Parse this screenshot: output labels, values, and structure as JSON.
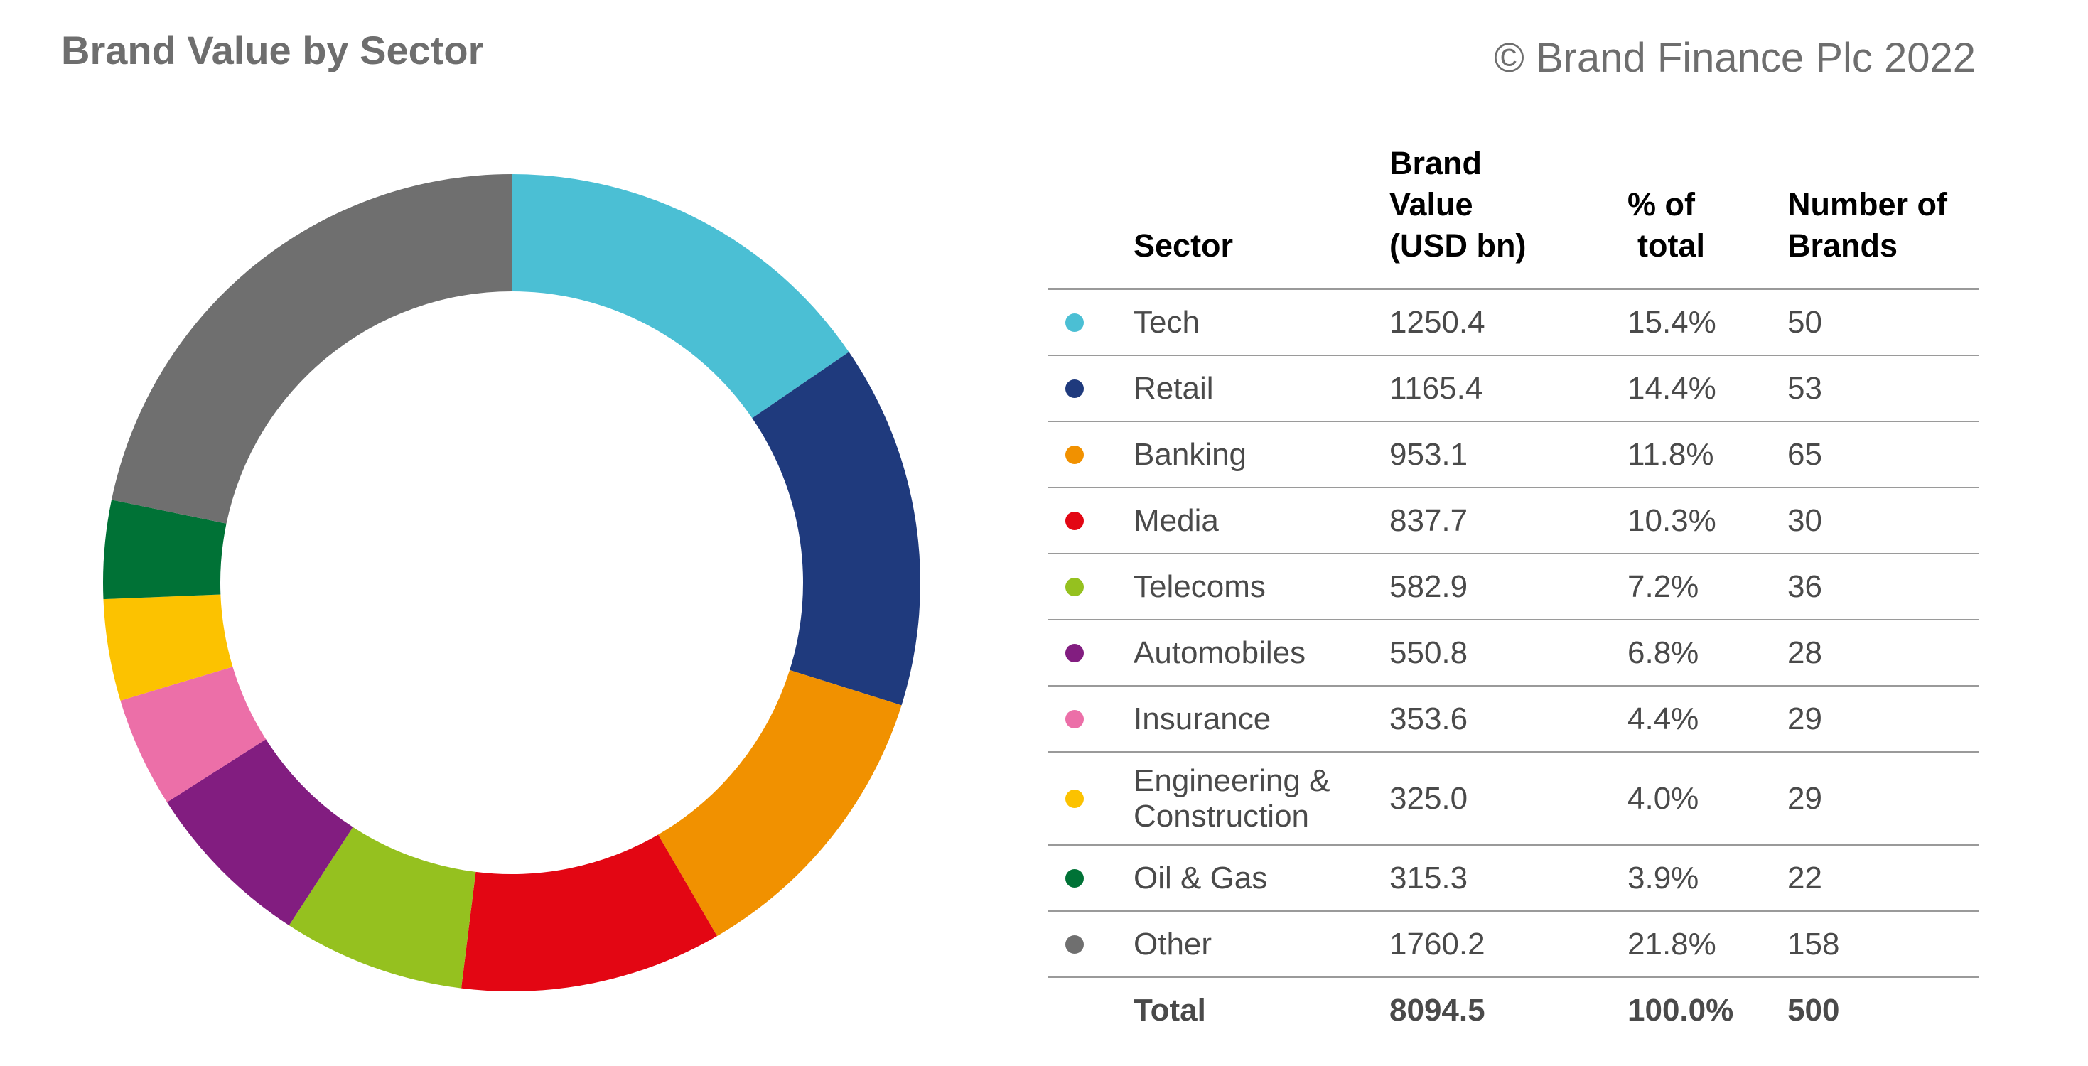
{
  "header": {
    "title": "Brand Value by Sector",
    "copyright": "© Brand Finance Plc 2022"
  },
  "table": {
    "headers": {
      "sector": "Sector",
      "value_line1": "Brand",
      "value_line2": "Value",
      "value_line3": "(USD bn)",
      "pct_line1": "% of",
      "pct_line2": "total",
      "brands_line1": "Number of",
      "brands_line2": "Brands"
    },
    "rows": [
      {
        "sector": "Tech",
        "value": "1250.4",
        "pct": "15.4%",
        "brands": "50",
        "color": "#4bbfd4"
      },
      {
        "sector": "Retail",
        "value": "1165.4",
        "pct": "14.4%",
        "brands": "53",
        "color": "#1f3a7d"
      },
      {
        "sector": "Banking",
        "value": "953.1",
        "pct": "11.8%",
        "brands": "65",
        "color": "#f19100"
      },
      {
        "sector": "Media",
        "value": "837.7",
        "pct": "10.3%",
        "brands": "30",
        "color": "#e30613"
      },
      {
        "sector": "Telecoms",
        "value": "582.9",
        "pct": "7.2%",
        "brands": "36",
        "color": "#95c11f"
      },
      {
        "sector": "Automobiles",
        "value": "550.8",
        "pct": "6.8%",
        "brands": "28",
        "color": "#821d80"
      },
      {
        "sector": "Insurance",
        "value": "353.6",
        "pct": "4.4%",
        "brands": "29",
        "color": "#ec6fa8"
      },
      {
        "sector_line1": "Engineering &",
        "sector_line2": "Construction",
        "value": "325.0",
        "pct": "4.0%",
        "brands": "29",
        "color": "#fcc200"
      },
      {
        "sector": "Oil & Gas",
        "value": "315.3",
        "pct": "3.9%",
        "brands": "22",
        "color": "#007236"
      },
      {
        "sector": "Other",
        "value": "1760.2",
        "pct": "21.8%",
        "brands": "158",
        "color": "#6f6f6f"
      }
    ],
    "total": {
      "label": "Total",
      "value": "8094.5",
      "pct": "100.0%",
      "brands": "500"
    }
  },
  "chart_data": {
    "type": "pie",
    "variant": "donut",
    "start": "12 o'clock",
    "direction": "clockwise",
    "categories": [
      "Tech",
      "Retail",
      "Banking",
      "Media",
      "Telecoms",
      "Automobiles",
      "Insurance",
      "Engineering & Construction",
      "Oil & Gas",
      "Other"
    ],
    "values": [
      1250.4,
      1165.4,
      953.1,
      837.7,
      582.9,
      550.8,
      353.6,
      325.0,
      315.3,
      1760.2
    ],
    "colors": [
      "#4bbfd4",
      "#1f3a7d",
      "#f19100",
      "#e30613",
      "#95c11f",
      "#821d80",
      "#ec6fa8",
      "#fcc200",
      "#007236",
      "#6f6f6f"
    ]
  }
}
